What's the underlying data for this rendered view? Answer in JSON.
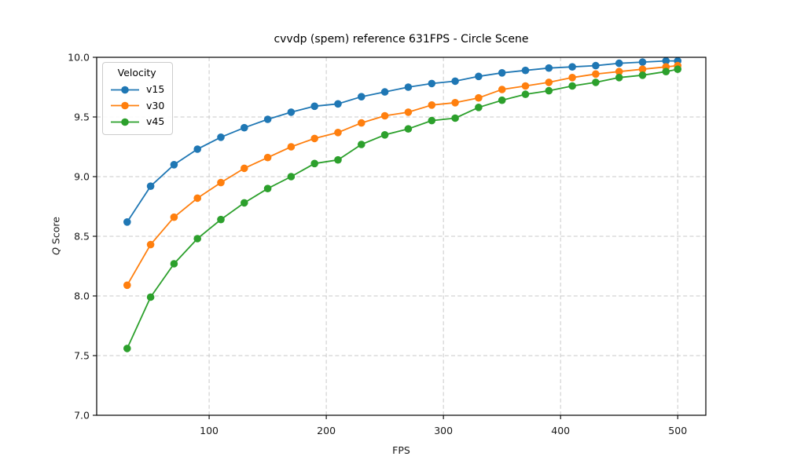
{
  "figure": {
    "title": "cvvdp (spem) reference 631FPS - Circle Scene",
    "xlabel": "FPS",
    "ylabel_italic": "Q",
    "ylabel_rest": " Score"
  },
  "legend": {
    "title": "Velocity"
  },
  "chart_data": {
    "type": "line",
    "title": "cvvdp (spem) reference 631FPS - Circle Scene",
    "xlabel": "FPS",
    "ylabel": "Q Score",
    "x": [
      30,
      50,
      70,
      90,
      110,
      130,
      150,
      170,
      190,
      210,
      230,
      250,
      270,
      290,
      310,
      330,
      350,
      370,
      390,
      410,
      430,
      450,
      470,
      490,
      500
    ],
    "series": [
      {
        "name": "v15",
        "color": "#1f77b4",
        "values": [
          8.62,
          8.92,
          9.1,
          9.23,
          9.33,
          9.41,
          9.48,
          9.54,
          9.59,
          9.61,
          9.67,
          9.71,
          9.75,
          9.78,
          9.8,
          9.84,
          9.87,
          9.89,
          9.91,
          9.92,
          9.93,
          9.95,
          9.96,
          9.97,
          9.97
        ]
      },
      {
        "name": "v30",
        "color": "#ff7f0e",
        "values": [
          8.09,
          8.43,
          8.66,
          8.82,
          8.95,
          9.07,
          9.16,
          9.25,
          9.32,
          9.37,
          9.45,
          9.51,
          9.54,
          9.6,
          9.62,
          9.66,
          9.73,
          9.76,
          9.79,
          9.83,
          9.86,
          9.88,
          9.9,
          9.92,
          9.93
        ]
      },
      {
        "name": "v45",
        "color": "#2ca02c",
        "values": [
          7.56,
          7.99,
          8.27,
          8.48,
          8.64,
          8.78,
          8.9,
          9.0,
          9.11,
          9.14,
          9.27,
          9.35,
          9.4,
          9.47,
          9.49,
          9.58,
          9.64,
          9.69,
          9.72,
          9.76,
          9.79,
          9.83,
          9.85,
          9.88,
          9.9
        ]
      }
    ],
    "xlim": [
      4,
      524
    ],
    "ylim": [
      7.0,
      10.0
    ],
    "xticks": [
      100,
      200,
      300,
      400,
      500
    ],
    "yticks": [
      7.0,
      7.5,
      8.0,
      8.5,
      9.0,
      9.5,
      10.0
    ],
    "grid": true,
    "grid_style": "dashed",
    "legend_title": "Velocity",
    "legend_position": "upper left",
    "marker": "o",
    "grid_color": "#c9c9c9",
    "spine_color": "#000000"
  }
}
